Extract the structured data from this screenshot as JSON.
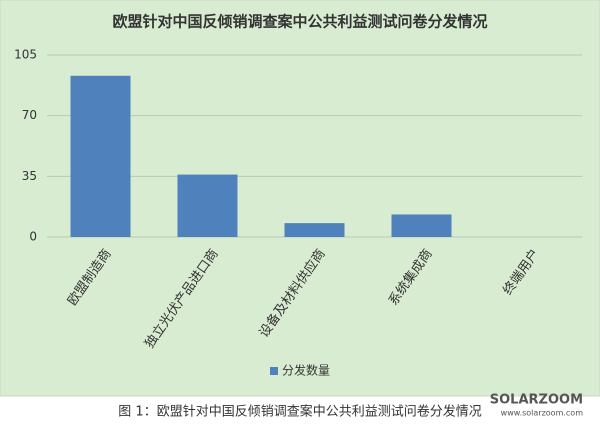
{
  "chart_data": {
    "type": "bar",
    "title": "欧盟针对中国反倾销调查案中公共利益测试问卷分发情况",
    "categories": [
      "欧盟制造商",
      "独立光伏产品进口商",
      "设备及材料供应商",
      "系统集成商",
      "终端用户"
    ],
    "series": [
      {
        "name": "分发数量",
        "color": "#4f81bd",
        "values": [
          93,
          36,
          8,
          13,
          0
        ]
      }
    ],
    "ylim": [
      0,
      105
    ],
    "yticks": [
      0,
      35,
      70,
      105
    ],
    "grid": true,
    "legend": "bottom"
  },
  "caption": "图 1：欧盟针对中国反倾销调查案中公共利益测试问卷分发情况",
  "watermark": {
    "brand": "SOLARZOOM",
    "url": "www.solarzoom.com"
  }
}
